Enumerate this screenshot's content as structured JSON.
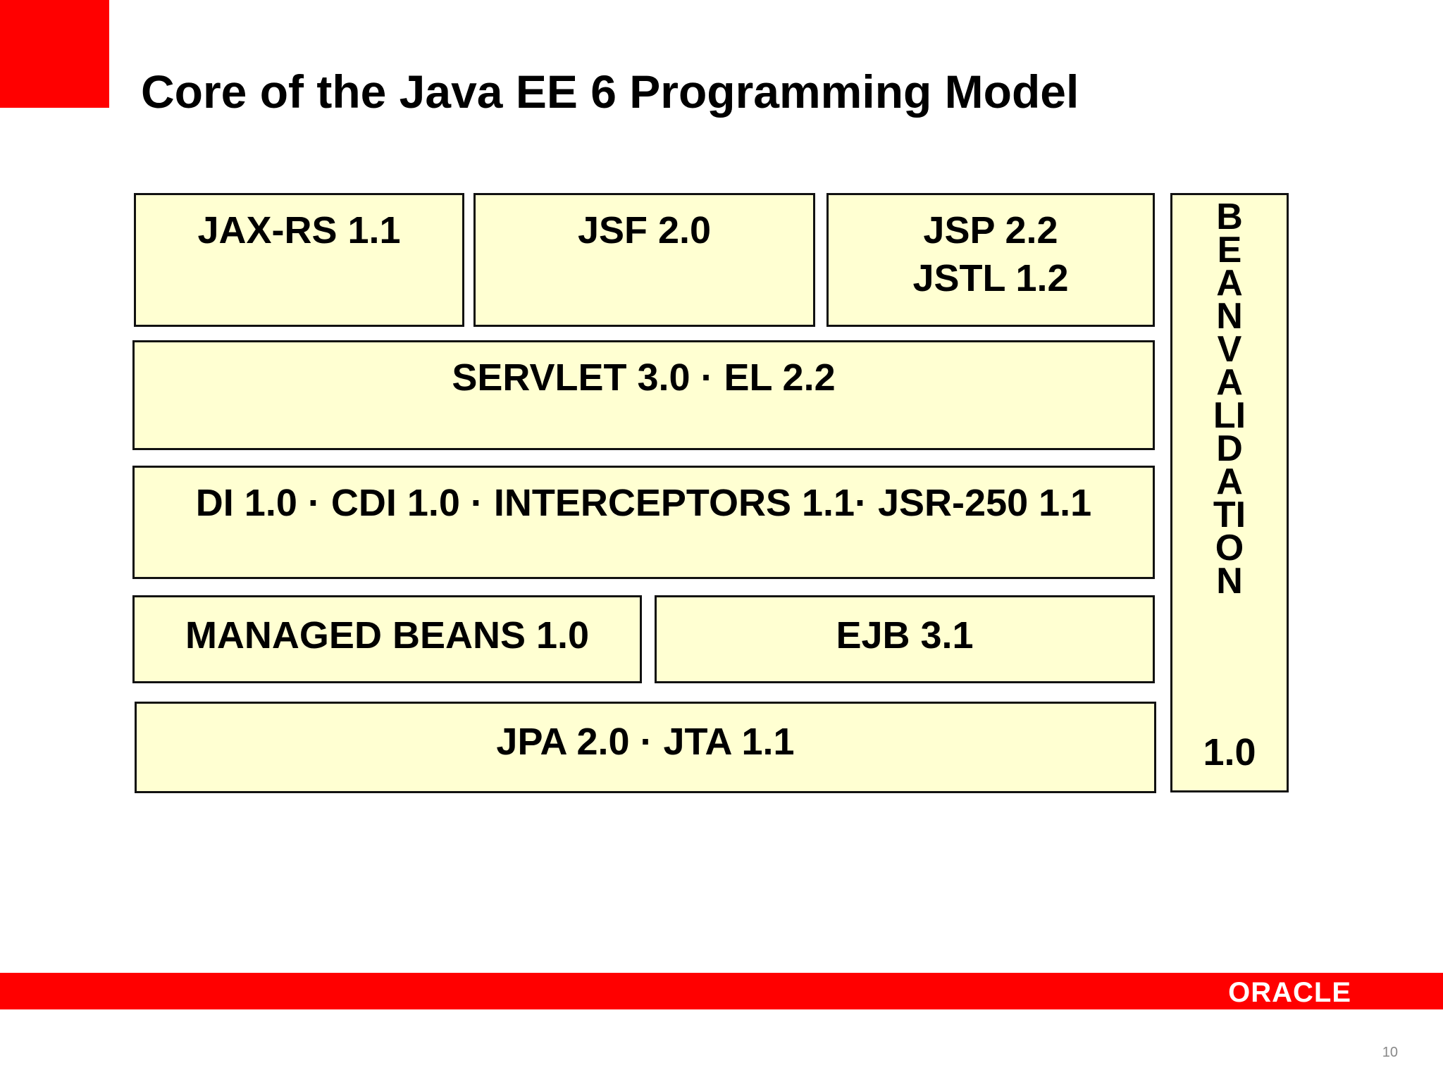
{
  "slide": {
    "title": "Core of the Java EE 6 Programming Model",
    "page_number": "10",
    "logo_text": "ORACLE"
  },
  "diagram": {
    "jaxrs": "JAX-RS 1.1",
    "jsf": "JSF 2.0",
    "jsp": "JSP 2.2",
    "jstl": "JSTL 1.2",
    "servlet": "SERVLET 3.0 · EL 2.2",
    "di": "DI 1.0 · CDI 1.0 · INTERCEPTORS 1.1· JSR-250 1.1",
    "managed_beans": "MANAGED BEANS 1.0",
    "ejb": "EJB 3.1",
    "jpa": "JPA 2.0 · JTA 1.1",
    "bean_validation_vertical": "BEAN VALIDATION",
    "bean_validation_version": "1.0"
  },
  "colors": {
    "accent": "#ff0000",
    "box_fill": "#ffffd2",
    "box_border": "#111111"
  }
}
